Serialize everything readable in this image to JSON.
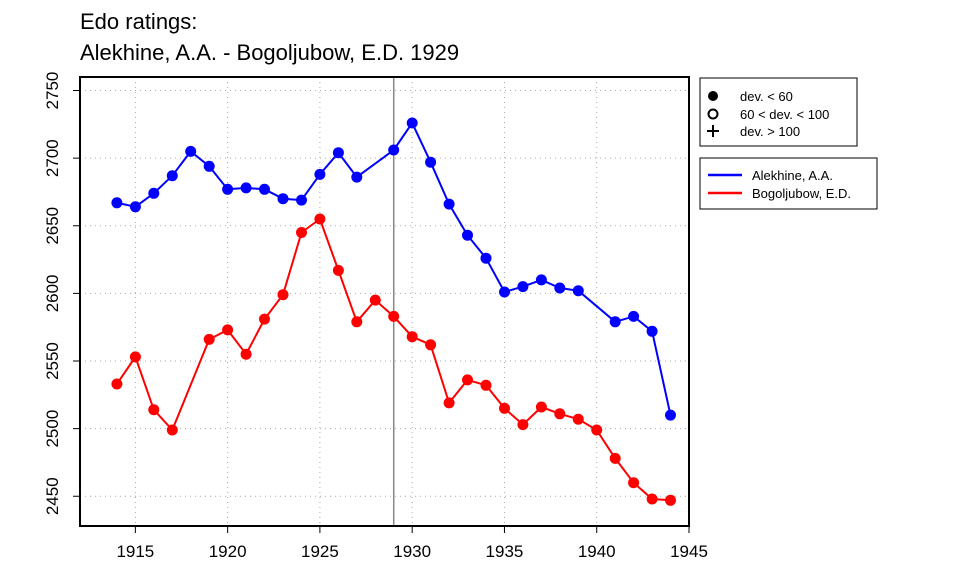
{
  "chart_data": {
    "type": "line",
    "title": "Edo ratings:",
    "subtitle": "Alekhine, A.A. - Bogoljubow, E.D. 1929",
    "xlabel": "",
    "ylabel": "",
    "xlim": [
      1912,
      1945
    ],
    "ylim": [
      2428,
      2760
    ],
    "x_ticks": [
      1915,
      1920,
      1925,
      1930,
      1935,
      1940,
      1945
    ],
    "y_ticks": [
      2450,
      2500,
      2550,
      2600,
      2650,
      2700,
      2750
    ],
    "grid": true,
    "vertical_marker": 1929,
    "legend_marker": {
      "placement": "top-right",
      "entries": [
        {
          "symbol": "filled-circle",
          "label": "dev. < 60"
        },
        {
          "symbol": "open-circle",
          "label": "60 < dev. < 100"
        },
        {
          "symbol": "plus",
          "label": "dev. > 100"
        }
      ]
    },
    "legend_series": {
      "placement": "right",
      "entries": [
        {
          "label": "Alekhine, A.A.",
          "color": "#0000ff"
        },
        {
          "label": "Bogoljubow, E.D.",
          "color": "#ff0000"
        }
      ]
    },
    "series": [
      {
        "name": "Alekhine, A.A.",
        "color": "#0000ff",
        "x": [
          1914,
          1915,
          1916,
          1917,
          1918,
          1919,
          1920,
          1921,
          1922,
          1923,
          1924,
          1925,
          1926,
          1927,
          1929,
          1930,
          1931,
          1932,
          1933,
          1934,
          1935,
          1936,
          1937,
          1938,
          1939,
          1941,
          1942,
          1943,
          1944
        ],
        "y": [
          2667,
          2664,
          2674,
          2687,
          2705,
          2694,
          2677,
          2678,
          2677,
          2670,
          2669,
          2688,
          2704,
          2686,
          2706,
          2726,
          2697,
          2666,
          2643,
          2626,
          2601,
          2605,
          2610,
          2604,
          2602,
          2579,
          2583,
          2572,
          2510
        ]
      },
      {
        "name": "Bogoljubow, E.D.",
        "color": "#ff0000",
        "x": [
          1914,
          1915,
          1916,
          1917,
          1919,
          1920,
          1921,
          1922,
          1923,
          1924,
          1925,
          1926,
          1927,
          1928,
          1929,
          1930,
          1931,
          1932,
          1933,
          1934,
          1935,
          1936,
          1937,
          1938,
          1939,
          1940,
          1941,
          1942,
          1943,
          1944
        ],
        "y": [
          2533,
          2553,
          2514,
          2499,
          2566,
          2573,
          2555,
          2581,
          2599,
          2645,
          2655,
          2617,
          2579,
          2595,
          2583,
          2568,
          2562,
          2519,
          2536,
          2532,
          2515,
          2503,
          2516,
          2511,
          2507,
          2499,
          2478,
          2460,
          2448,
          2447
        ]
      }
    ]
  }
}
